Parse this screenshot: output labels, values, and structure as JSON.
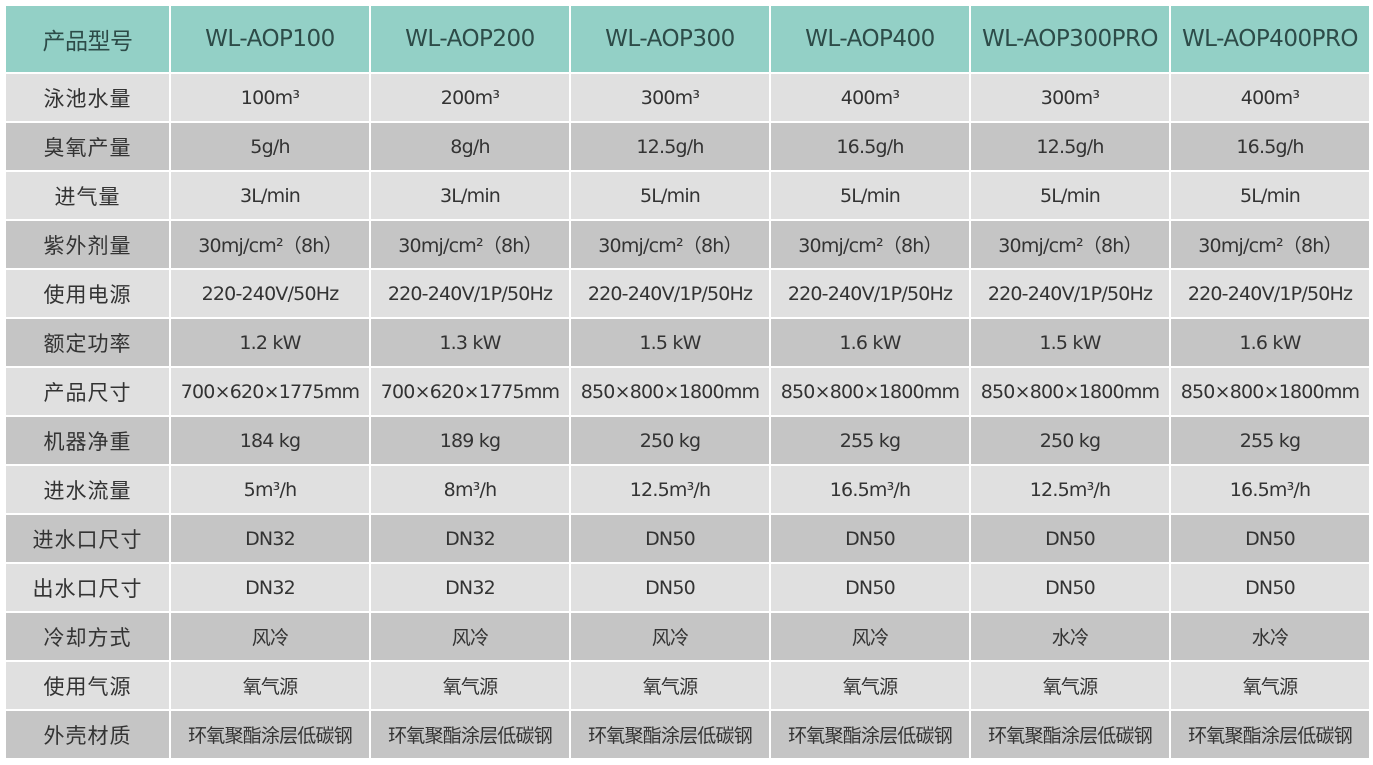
{
  "header": {
    "label": "产品型号",
    "models": [
      "WL-AOP100",
      "WL-AOP200",
      "WL-AOP300",
      "WL-AOP400",
      "WL-AOP300PRO",
      "WL-AOP400PRO"
    ]
  },
  "colors": {
    "header_bg": "#93d0c6",
    "row_light": "#e0e0e0",
    "row_dark": "#c5c5c5"
  },
  "rows": [
    {
      "label": "泳池水量",
      "values": [
        "100m³",
        "200m³",
        "300m³",
        "400m³",
        "300m³",
        "400m³"
      ]
    },
    {
      "label": "臭氧产量",
      "values": [
        "5g/h",
        "8g/h",
        "12.5g/h",
        "16.5g/h",
        "12.5g/h",
        "16.5g/h"
      ]
    },
    {
      "label": "进气量",
      "values": [
        "3L/min",
        "3L/min",
        "5L/min",
        "5L/min",
        "5L/min",
        "5L/min"
      ]
    },
    {
      "label": "紫外剂量",
      "values": [
        "30mj/cm²（8h）",
        "30mj/cm²（8h）",
        "30mj/cm²（8h）",
        "30mj/cm²（8h）",
        "30mj/cm²（8h）",
        "30mj/cm²（8h）"
      ]
    },
    {
      "label": "使用电源",
      "values": [
        "220-240V/50Hz",
        "220-240V/1P/50Hz",
        "220-240V/1P/50Hz",
        "220-240V/1P/50Hz",
        "220-240V/1P/50Hz",
        "220-240V/1P/50Hz"
      ]
    },
    {
      "label": "额定功率",
      "values": [
        "1.2 kW",
        "1.3 kW",
        "1.5 kW",
        "1.6 kW",
        "1.5 kW",
        "1.6 kW"
      ]
    },
    {
      "label": "产品尺寸",
      "values": [
        "700×620×1775mm",
        "700×620×1775mm",
        "850×800×1800mm",
        "850×800×1800mm",
        "850×800×1800mm",
        "850×800×1800mm"
      ]
    },
    {
      "label": "机器净重",
      "values": [
        "184 kg",
        "189 kg",
        "250 kg",
        "255 kg",
        "250 kg",
        "255 kg"
      ]
    },
    {
      "label": "进水流量",
      "values": [
        "5m³/h",
        "8m³/h",
        "12.5m³/h",
        "16.5m³/h",
        "12.5m³/h",
        "16.5m³/h"
      ]
    },
    {
      "label": "进水口尺寸",
      "values": [
        "DN32",
        "DN32",
        "DN50",
        "DN50",
        "DN50",
        "DN50"
      ]
    },
    {
      "label": "出水口尺寸",
      "values": [
        "DN32",
        "DN32",
        "DN50",
        "DN50",
        "DN50",
        "DN50"
      ]
    },
    {
      "label": "冷却方式",
      "values": [
        "风冷",
        "风冷",
        "风冷",
        "风冷",
        "水冷",
        "水冷"
      ]
    },
    {
      "label": "使用气源",
      "values": [
        "氧气源",
        "氧气源",
        "氧气源",
        "氧气源",
        "氧气源",
        "氧气源"
      ]
    },
    {
      "label": "外壳材质",
      "values": [
        "环氧聚酯涂层低碳钢",
        "环氧聚酯涂层低碳钢",
        "环氧聚酯涂层低碳钢",
        "环氧聚酯涂层低碳钢",
        "环氧聚酯涂层低碳钢",
        "环氧聚酯涂层低碳钢"
      ]
    }
  ]
}
